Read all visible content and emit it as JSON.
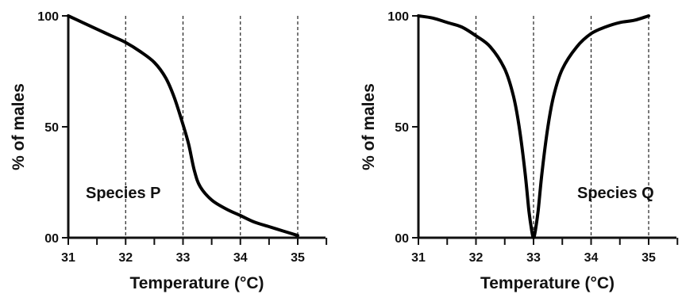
{
  "chart_data": [
    {
      "type": "line",
      "title": "",
      "xlabel": "Temperature (°C)",
      "ylabel": "% of males",
      "annotation": "Species P",
      "xlim": [
        31,
        35.5
      ],
      "ylim": [
        0,
        100
      ],
      "x_ticks": [
        31,
        32,
        33,
        34,
        35
      ],
      "x_tick_labels": [
        "31",
        "32",
        "33",
        "34",
        "35"
      ],
      "y_ticks": [
        0,
        50,
        100
      ],
      "y_tick_labels": [
        "00",
        "50",
        "100"
      ],
      "grid": "vertical dashed at 32, 33, 34, 35",
      "x": [
        31,
        31.25,
        31.5,
        31.75,
        32,
        32.25,
        32.5,
        32.7,
        32.85,
        33,
        33.1,
        33.2,
        33.3,
        33.5,
        33.75,
        34,
        34.25,
        34.5,
        34.75,
        35
      ],
      "y": [
        100,
        97,
        94,
        91,
        88,
        84,
        79,
        72,
        63,
        51,
        42,
        30,
        23,
        17,
        13,
        10,
        7,
        5,
        3,
        1
      ]
    },
    {
      "type": "line",
      "title": "",
      "xlabel": "Temperature (°C)",
      "ylabel": "% of males",
      "annotation": "Species Q",
      "xlim": [
        31,
        35.5
      ],
      "ylim": [
        0,
        100
      ],
      "x_ticks": [
        31,
        32,
        33,
        34,
        35
      ],
      "x_tick_labels": [
        "31",
        "32",
        "33",
        "34",
        "35"
      ],
      "y_ticks": [
        0,
        50,
        100
      ],
      "y_tick_labels": [
        "00",
        "50",
        "100"
      ],
      "grid": "vertical dashed at 32, 33, 34, 35",
      "x": [
        31,
        31.25,
        31.5,
        31.75,
        32,
        32.25,
        32.5,
        32.65,
        32.75,
        32.85,
        32.92,
        32.97,
        33,
        33.03,
        33.08,
        33.15,
        33.25,
        33.35,
        33.5,
        33.75,
        34,
        34.25,
        34.5,
        34.75,
        35
      ],
      "y": [
        100,
        99,
        97,
        95,
        91,
        86,
        76,
        64,
        50,
        30,
        12,
        3,
        0,
        3,
        12,
        30,
        50,
        64,
        76,
        86,
        92,
        95,
        97,
        98,
        100
      ]
    }
  ]
}
